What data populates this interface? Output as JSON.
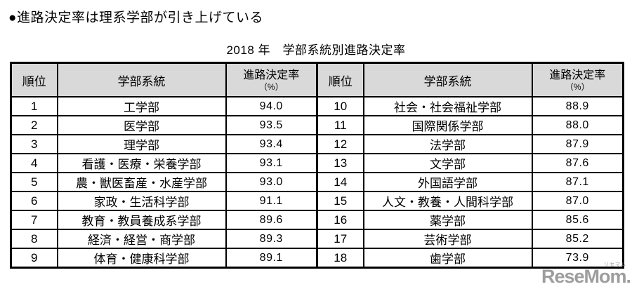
{
  "page": {
    "headline": "●進路決定率は理系学部が引き上げている",
    "table_title": "2018 年　学部系統別進路決定率"
  },
  "table": {
    "headers": {
      "rank": "順位",
      "faculty": "学部系統",
      "rate": "進路決定率",
      "rate_unit": "（%）"
    },
    "left_rows": [
      {
        "rank": "1",
        "faculty": "工学部",
        "rate": "94.0"
      },
      {
        "rank": "2",
        "faculty": "医学部",
        "rate": "93.5"
      },
      {
        "rank": "3",
        "faculty": "理学部",
        "rate": "93.4"
      },
      {
        "rank": "4",
        "faculty": "看護・医療・栄養学部",
        "rate": "93.1"
      },
      {
        "rank": "5",
        "faculty": "農・獣医畜産・水産学部",
        "rate": "93.0"
      },
      {
        "rank": "6",
        "faculty": "家政・生活科学部",
        "rate": "91.1"
      },
      {
        "rank": "7",
        "faculty": "教育・教員養成系学部",
        "rate": "89.6"
      },
      {
        "rank": "8",
        "faculty": "経済・経営・商学部",
        "rate": "89.3"
      },
      {
        "rank": "9",
        "faculty": "体育・健康科学部",
        "rate": "89.1"
      }
    ],
    "right_rows": [
      {
        "rank": "10",
        "faculty": "社会・社会福祉学部",
        "rate": "88.9"
      },
      {
        "rank": "11",
        "faculty": "国際関係学部",
        "rate": "88.0"
      },
      {
        "rank": "12",
        "faculty": "法学部",
        "rate": "87.9"
      },
      {
        "rank": "13",
        "faculty": "文学部",
        "rate": "87.6"
      },
      {
        "rank": "14",
        "faculty": "外国語学部",
        "rate": "87.1"
      },
      {
        "rank": "15",
        "faculty": "人文・教養・人間科学部",
        "rate": "87.0"
      },
      {
        "rank": "16",
        "faculty": "薬学部",
        "rate": "85.6"
      },
      {
        "rank": "17",
        "faculty": "芸術学部",
        "rate": "85.2"
      },
      {
        "rank": "18",
        "faculty": "歯学部",
        "rate": "73.9"
      }
    ]
  },
  "chart_data": {
    "type": "table",
    "title": "2018 年　学部系統別進路決定率",
    "headline": "●進路決定率は理系学部が引き上げている",
    "columns": [
      "順位",
      "学部系統",
      "進路決定率（%）"
    ],
    "rows": [
      [
        1,
        "工学部",
        94.0
      ],
      [
        2,
        "医学部",
        93.5
      ],
      [
        3,
        "理学部",
        93.4
      ],
      [
        4,
        "看護・医療・栄養学部",
        93.1
      ],
      [
        5,
        "農・獣医畜産・水産学部",
        93.0
      ],
      [
        6,
        "家政・生活科学部",
        91.1
      ],
      [
        7,
        "教育・教員養成系学部",
        89.6
      ],
      [
        8,
        "経済・経営・商学部",
        89.3
      ],
      [
        9,
        "体育・健康科学部",
        89.1
      ],
      [
        10,
        "社会・社会福祉学部",
        88.9
      ],
      [
        11,
        "国際関係学部",
        88.0
      ],
      [
        12,
        "法学部",
        87.9
      ],
      [
        13,
        "文学部",
        87.6
      ],
      [
        14,
        "外国語学部",
        87.1
      ],
      [
        15,
        "人文・教養・人間科学部",
        87.0
      ],
      [
        16,
        "薬学部",
        85.6
      ],
      [
        17,
        "芸術学部",
        85.2
      ],
      [
        18,
        "歯学部",
        73.9
      ]
    ]
  },
  "watermark": {
    "logo": "ReseMom.",
    "ruby": "リセマム"
  },
  "colors": {
    "header_bg": "#d9d9d9",
    "border": "#000000",
    "watermark": "#8c8c8c"
  }
}
